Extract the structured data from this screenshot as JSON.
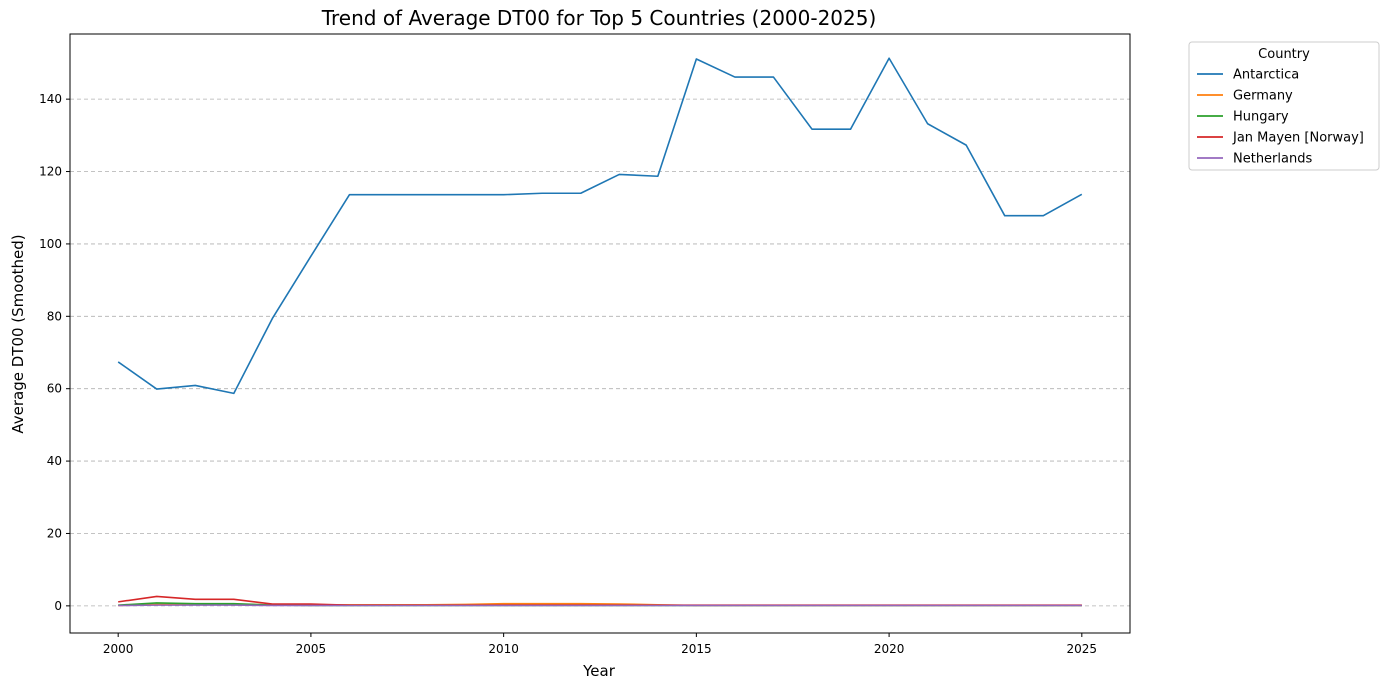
{
  "chart_data": {
    "type": "line",
    "title": "Trend of Average DT00 for Top 5 Countries (2000-2025)",
    "xlabel": "Year",
    "ylabel": "Average DT00 (Smoothed)",
    "xlim": [
      1998.75,
      2026.25
    ],
    "ylim": [
      -7.5,
      158
    ],
    "xticks": [
      2000,
      2005,
      2010,
      2015,
      2020,
      2025
    ],
    "yticks": [
      0,
      20,
      40,
      60,
      80,
      100,
      120,
      140
    ],
    "grid": "y-dashed",
    "legend": {
      "title": "Country",
      "placement": "outside-top-right"
    },
    "x": [
      2000,
      2001,
      2002,
      2003,
      2004,
      2005,
      2006,
      2007,
      2008,
      2009,
      2010,
      2011,
      2012,
      2013,
      2014,
      2015,
      2016,
      2017,
      2018,
      2019,
      2020,
      2021,
      2022,
      2023,
      2024,
      2025
    ],
    "series": [
      {
        "name": "Antarctica",
        "color": "#1f77b4",
        "values": [
          67.4,
          59.9,
          60.9,
          58.7,
          79.4,
          96.6,
          113.6,
          113.6,
          113.6,
          113.6,
          113.6,
          114.0,
          114.0,
          119.2,
          118.7,
          151.1,
          146.1,
          146.1,
          131.7,
          131.7,
          151.3,
          133.2,
          127.3,
          107.8,
          107.8,
          113.7
        ]
      },
      {
        "name": "Germany",
        "color": "#ff7f0e",
        "values": [
          0.1,
          0.4,
          0.4,
          0.4,
          0.3,
          0.3,
          0.3,
          0.3,
          0.3,
          0.4,
          0.6,
          0.6,
          0.6,
          0.5,
          0.3,
          0.1,
          0.1,
          0.1,
          0.1,
          0.1,
          0.1,
          0.1,
          0.1,
          0.1,
          0.1,
          0.1
        ]
      },
      {
        "name": "Hungary",
        "color": "#2ca02c",
        "values": [
          0.2,
          0.8,
          0.6,
          0.6,
          0.2,
          0.1,
          0.1,
          0.1,
          0.1,
          0.1,
          0.1,
          0.1,
          0.1,
          0.1,
          0.1,
          0.1,
          0.1,
          0.1,
          0.1,
          0.1,
          0.1,
          0.1,
          0.1,
          0.1,
          0.1,
          0.1
        ]
      },
      {
        "name": "Jan Mayen [Norway]",
        "color": "#d62728",
        "values": [
          1.1,
          2.6,
          1.8,
          1.8,
          0.5,
          0.5,
          0.2,
          0.2,
          0.2,
          0.2,
          0.2,
          0.2,
          0.2,
          0.2,
          0.2,
          0.2,
          0.2,
          0.2,
          0.2,
          0.2,
          0.2,
          0.2,
          0.2,
          0.2,
          0.2,
          0.2
        ]
      },
      {
        "name": "Netherlands",
        "color": "#9467bd",
        "values": [
          0.1,
          0.2,
          0.2,
          0.2,
          0.1,
          0.1,
          0.1,
          0.1,
          0.1,
          0.1,
          0.1,
          0.1,
          0.1,
          0.1,
          0.1,
          0.1,
          0.1,
          0.1,
          0.1,
          0.1,
          0.1,
          0.1,
          0.1,
          0.1,
          0.1,
          0.1
        ]
      }
    ]
  }
}
